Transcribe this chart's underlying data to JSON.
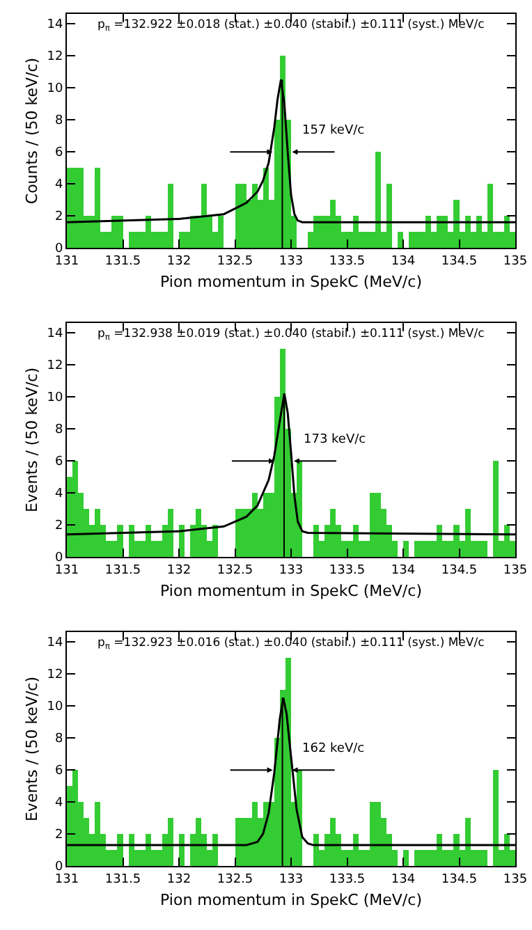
{
  "chart_data": [
    {
      "type": "histogram",
      "xlabel": "Pion momentum in SpekC (MeV/c)",
      "ylabel": "Counts / (50 keV/c)",
      "bins": [
        131,
        131.05,
        131.1,
        131.15,
        131.2,
        131.25,
        131.3,
        131.35,
        131.4,
        131.45,
        131.5,
        131.55,
        131.6,
        131.65,
        131.7,
        131.75,
        131.8,
        131.85,
        131.9,
        131.95,
        132,
        132.05,
        132.1,
        132.15,
        132.2,
        132.25,
        132.3,
        132.35,
        132.4,
        132.45,
        132.5,
        132.55,
        132.6,
        132.65,
        132.7,
        132.75,
        132.8,
        132.85,
        132.9,
        132.95,
        133,
        133.05,
        133.1,
        133.15,
        133.2,
        133.25,
        133.3,
        133.35,
        133.4,
        133.45,
        133.5,
        133.55,
        133.6,
        133.65,
        133.7,
        133.75,
        133.8,
        133.85,
        133.9,
        133.95,
        134,
        134.05,
        134.1,
        134.15,
        134.2,
        134.25,
        134.3,
        134.35,
        134.4,
        134.45,
        134.5,
        134.55,
        134.6,
        134.65,
        134.7,
        134.75,
        134.8,
        134.85,
        134.9,
        134.95,
        135
      ],
      "series": [
        {
          "color": "#33cc33",
          "values": [
            5,
            5,
            5,
            2,
            2,
            5,
            1,
            1,
            2,
            2,
            0,
            1,
            1,
            1,
            2,
            1,
            1,
            1,
            4,
            0,
            1,
            1,
            2,
            2,
            4,
            2,
            1,
            2,
            0,
            0,
            4,
            4,
            3,
            4,
            3,
            5,
            3,
            8,
            12,
            8,
            2,
            0,
            0,
            1,
            2,
            2,
            2,
            3,
            2,
            1,
            1,
            2,
            1,
            1,
            1,
            6,
            1,
            4,
            0,
            1,
            0,
            1,
            1,
            1,
            2,
            1,
            2,
            2,
            1,
            3,
            1,
            2,
            1,
            2,
            1,
            4,
            1,
            1,
            2,
            1
          ]
        },
        {
          "type": "line",
          "color": "#000000",
          "x": [
            131,
            132,
            132.4,
            132.6,
            132.7,
            132.75,
            132.8,
            132.85,
            132.88,
            132.91,
            132.94,
            132.97,
            133,
            133.03,
            133.06,
            133.1,
            135
          ],
          "values": [
            1.6,
            1.8,
            2.1,
            2.8,
            3.5,
            4.2,
            5.3,
            7.5,
            9.3,
            10.5,
            9,
            6,
            3.3,
            2.1,
            1.7,
            1.6,
            1.6
          ]
        }
      ],
      "xlim": [
        131,
        135
      ],
      "xticks": [
        131,
        131.5,
        132,
        132.5,
        133,
        133.5,
        134,
        134.5,
        135
      ],
      "ylim": [
        0,
        14.6
      ],
      "yticks": [
        0,
        2,
        4,
        6,
        8,
        10,
        12,
        14
      ],
      "ref_lines": [
        {
          "axis": "x",
          "value": 132.922,
          "color": "#000000"
        }
      ],
      "annotations": [
        "p$_{π}$ =132.922 ±0.018 (stat.) ±0.040 (stabil.) ±0.111 (syst.) MeV/c",
        "157 keV/c"
      ],
      "grid": false
    },
    {
      "type": "histogram",
      "xlabel": "Pion momentum in SpekC (MeV/c)",
      "ylabel": "Events / (50 keV/c)",
      "bins": [
        131,
        131.05,
        131.1,
        131.15,
        131.2,
        131.25,
        131.3,
        131.35,
        131.4,
        131.45,
        131.5,
        131.55,
        131.6,
        131.65,
        131.7,
        131.75,
        131.8,
        131.85,
        131.9,
        131.95,
        132,
        132.05,
        132.1,
        132.15,
        132.2,
        132.25,
        132.3,
        132.35,
        132.4,
        132.45,
        132.5,
        132.55,
        132.6,
        132.65,
        132.7,
        132.75,
        132.8,
        132.85,
        132.9,
        132.95,
        133,
        133.05,
        133.1,
        133.15,
        133.2,
        133.25,
        133.3,
        133.35,
        133.4,
        133.45,
        133.5,
        133.55,
        133.6,
        133.65,
        133.7,
        133.75,
        133.8,
        133.85,
        133.9,
        133.95,
        134,
        134.05,
        134.1,
        134.15,
        134.2,
        134.25,
        134.3,
        134.35,
        134.4,
        134.45,
        134.5,
        134.55,
        134.6,
        134.65,
        134.7,
        134.75,
        134.8,
        134.85,
        134.9,
        134.95,
        135
      ],
      "series": [
        {
          "color": "#33cc33",
          "values": [
            5,
            6,
            4,
            3,
            2,
            3,
            2,
            1,
            1,
            2,
            0,
            2,
            1,
            1,
            2,
            1,
            1,
            2,
            3,
            0,
            2,
            0,
            2,
            3,
            2,
            1,
            2,
            0,
            0,
            0,
            3,
            3,
            3,
            4,
            3,
            4,
            4,
            10,
            13,
            8,
            4,
            6,
            0,
            0,
            2,
            1,
            2,
            3,
            2,
            1,
            1,
            2,
            1,
            1,
            4,
            4,
            3,
            2,
            1,
            0,
            1,
            0,
            1,
            1,
            1,
            1,
            2,
            1,
            1,
            2,
            1,
            3,
            1,
            1,
            1,
            0,
            6,
            1,
            2,
            1
          ]
        },
        {
          "type": "line",
          "color": "#000000",
          "x": [
            131,
            132,
            132.4,
            132.6,
            132.7,
            132.8,
            132.85,
            132.9,
            132.94,
            132.97,
            133,
            133.03,
            133.06,
            133.1,
            133.15,
            135
          ],
          "values": [
            1.4,
            1.6,
            1.9,
            2.5,
            3.2,
            4.8,
            6.3,
            8.5,
            10.2,
            9,
            6.5,
            3.8,
            2.2,
            1.6,
            1.5,
            1.4
          ]
        }
      ],
      "xlim": [
        131,
        135
      ],
      "xticks": [
        131,
        131.5,
        132,
        132.5,
        133,
        133.5,
        134,
        134.5,
        135
      ],
      "ylim": [
        0,
        14.6
      ],
      "yticks": [
        0,
        2,
        4,
        6,
        8,
        10,
        12,
        14
      ],
      "ref_lines": [
        {
          "axis": "x",
          "value": 132.938,
          "color": "#000000"
        }
      ],
      "annotations": [
        "p$_{π}$ =132.938 ±0.019 (stat.) ±0.040 (stabil.) ±0.111 (syst.) MeV/c",
        "173 keV/c"
      ],
      "grid": false
    },
    {
      "type": "histogram",
      "xlabel": "Pion momentum in SpekC (MeV/c)",
      "ylabel": "Events / (50 keV/c)",
      "bins": [
        131,
        131.05,
        131.1,
        131.15,
        131.2,
        131.25,
        131.3,
        131.35,
        131.4,
        131.45,
        131.5,
        131.55,
        131.6,
        131.65,
        131.7,
        131.75,
        131.8,
        131.85,
        131.9,
        131.95,
        132,
        132.05,
        132.1,
        132.15,
        132.2,
        132.25,
        132.3,
        132.35,
        132.4,
        132.45,
        132.5,
        132.55,
        132.6,
        132.65,
        132.7,
        132.75,
        132.8,
        132.85,
        132.9,
        132.95,
        133,
        133.05,
        133.1,
        133.15,
        133.2,
        133.25,
        133.3,
        133.35,
        133.4,
        133.45,
        133.5,
        133.55,
        133.6,
        133.65,
        133.7,
        133.75,
        133.8,
        133.85,
        133.9,
        133.95,
        134,
        134.05,
        134.1,
        134.15,
        134.2,
        134.25,
        134.3,
        134.35,
        134.4,
        134.45,
        134.5,
        134.55,
        134.6,
        134.65,
        134.7,
        134.75,
        134.8,
        134.85,
        134.9,
        134.95,
        135
      ],
      "series": [
        {
          "color": "#33cc33",
          "values": [
            5,
            6,
            4,
            3,
            2,
            4,
            2,
            1,
            1,
            2,
            0,
            2,
            1,
            1,
            2,
            1,
            1,
            2,
            3,
            0,
            2,
            0,
            2,
            3,
            2,
            1,
            2,
            0,
            0,
            0,
            3,
            3,
            3,
            4,
            3,
            4,
            4,
            8,
            11,
            13,
            4,
            6,
            0,
            0,
            2,
            1,
            2,
            3,
            2,
            1,
            1,
            2,
            1,
            1,
            4,
            4,
            3,
            2,
            1,
            0,
            1,
            0,
            1,
            1,
            1,
            1,
            2,
            1,
            1,
            2,
            1,
            3,
            1,
            1,
            1,
            0,
            6,
            1,
            2,
            1
          ]
        },
        {
          "type": "line",
          "color": "#000000",
          "x": [
            131,
            132.6,
            132.7,
            132.75,
            132.8,
            132.85,
            132.9,
            132.93,
            132.96,
            133,
            133.05,
            133.1,
            133.15,
            133.2,
            135
          ],
          "values": [
            1.3,
            1.3,
            1.5,
            2,
            3.3,
            5.8,
            9.2,
            10.5,
            9.5,
            6.8,
            3.5,
            1.8,
            1.4,
            1.3,
            1.3
          ]
        }
      ],
      "xlim": [
        131,
        135
      ],
      "xticks": [
        131,
        131.5,
        132,
        132.5,
        133,
        133.5,
        134,
        134.5,
        135
      ],
      "ylim": [
        0,
        14.6
      ],
      "yticks": [
        0,
        2,
        4,
        6,
        8,
        10,
        12,
        14
      ],
      "ref_lines": [
        {
          "axis": "x",
          "value": 132.923,
          "color": "#000000"
        }
      ],
      "annotations": [
        "p$_{π}$ =132.923 ±0.016 (stat.) ±0.040 (stabil.) ±0.111 (syst.) MeV/c",
        "162 keV/c"
      ],
      "grid": false
    }
  ]
}
